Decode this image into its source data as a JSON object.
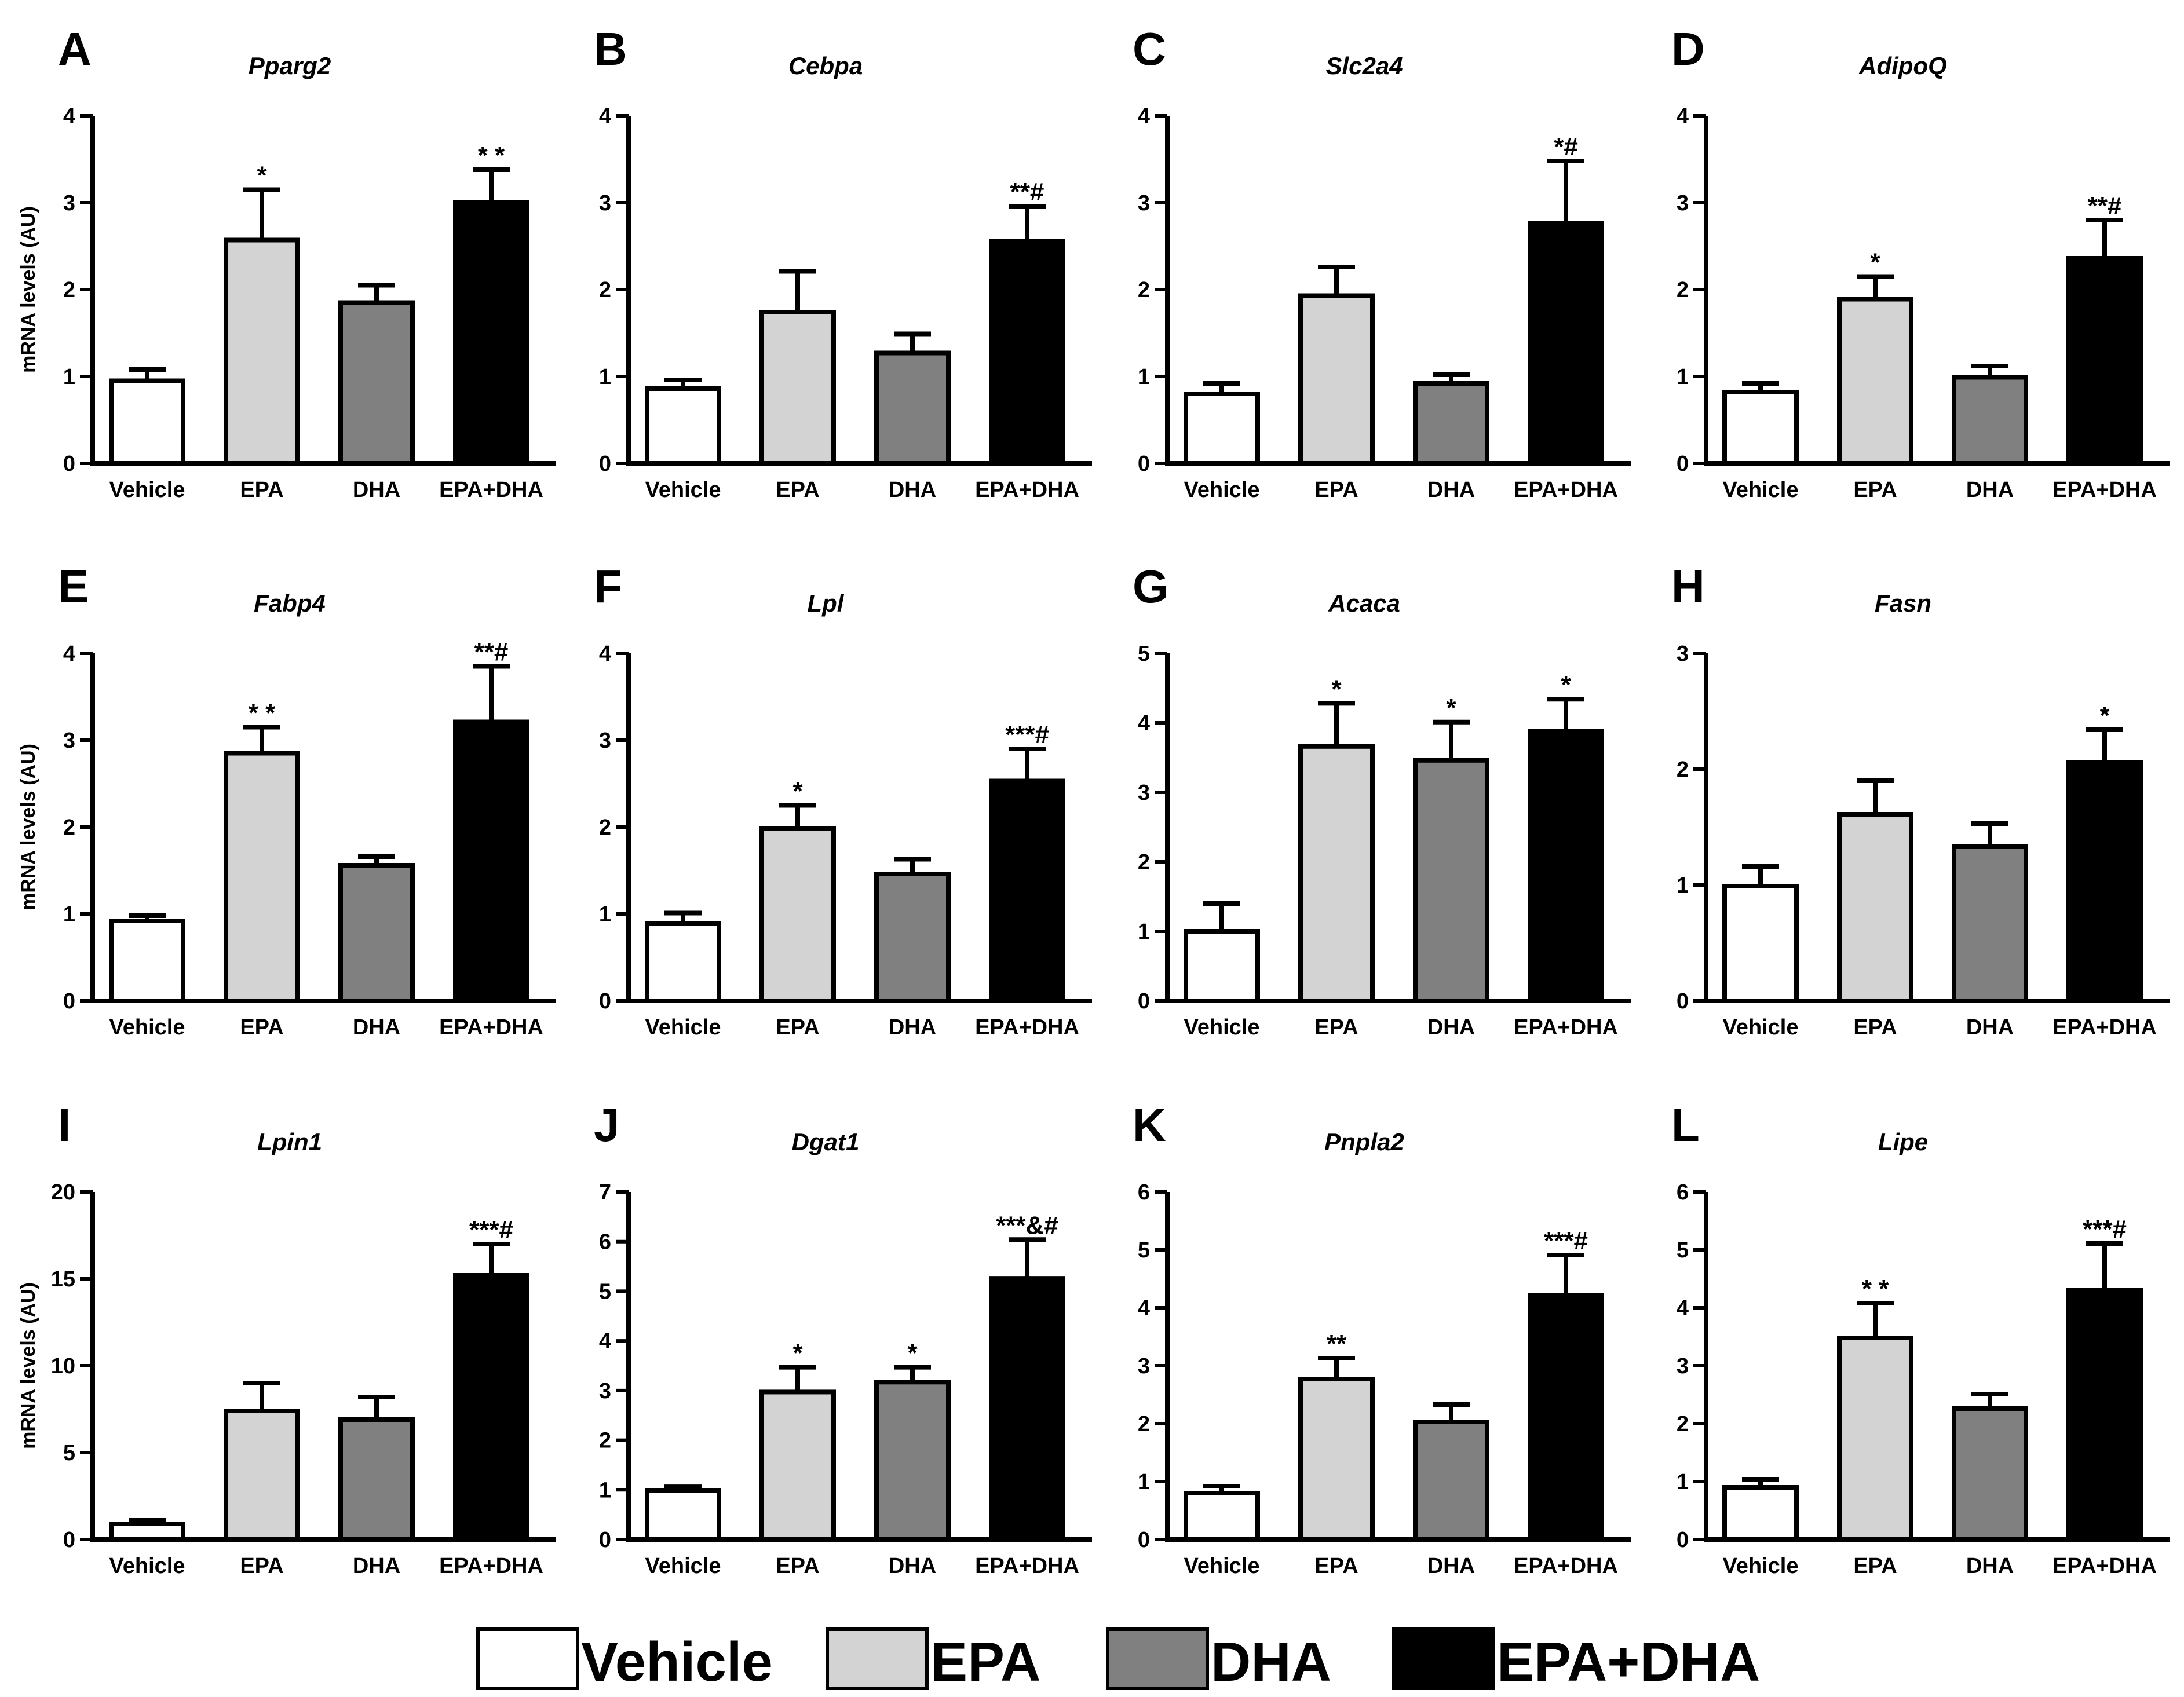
{
  "colors": {
    "Vehicle": "#ffffff",
    "EPA": "#d3d3d3",
    "DHA": "#808080",
    "EPA+DHA": "#000000",
    "stroke": "#000000"
  },
  "legend": [
    "Vehicle",
    "EPA",
    "DHA",
    "EPA+DHA"
  ],
  "chart_data": [
    {
      "panel": "A",
      "type": "bar",
      "title": "Pparg2",
      "ylabel": "mRNA levels (AU)",
      "categories": [
        "Vehicle",
        "EPA",
        "DHA",
        "EPA+DHA"
      ],
      "values": [
        0.95,
        2.57,
        1.85,
        3.0
      ],
      "errors": [
        0.13,
        0.58,
        0.2,
        0.38
      ],
      "annotations": [
        "",
        "*",
        "",
        "* *"
      ],
      "ylim": [
        0,
        4
      ],
      "yticks": [
        "0",
        "1",
        "2",
        "3",
        "4"
      ]
    },
    {
      "panel": "B",
      "type": "bar",
      "title": "Cebpa",
      "ylabel": "",
      "categories": [
        "Vehicle",
        "EPA",
        "DHA",
        "EPA+DHA"
      ],
      "values": [
        0.86,
        1.74,
        1.27,
        2.56
      ],
      "errors": [
        0.1,
        0.47,
        0.22,
        0.4
      ],
      "annotations": [
        "",
        "",
        "",
        "**#"
      ],
      "ylim": [
        0,
        4
      ],
      "yticks": [
        "0",
        "1",
        "2",
        "3",
        "4"
      ]
    },
    {
      "panel": "C",
      "type": "bar",
      "title": "Slc2a4",
      "ylabel": "",
      "categories": [
        "Vehicle",
        "EPA",
        "DHA",
        "EPA+DHA"
      ],
      "values": [
        0.8,
        1.93,
        0.92,
        2.76
      ],
      "errors": [
        0.12,
        0.33,
        0.1,
        0.72
      ],
      "annotations": [
        "",
        "",
        "",
        "*#"
      ],
      "ylim": [
        0,
        4
      ],
      "yticks": [
        "0",
        "1",
        "2",
        "3",
        "4"
      ]
    },
    {
      "panel": "D",
      "type": "bar",
      "title": "AdipoQ",
      "ylabel": "",
      "categories": [
        "Vehicle",
        "EPA",
        "DHA",
        "EPA+DHA"
      ],
      "values": [
        0.82,
        1.89,
        0.99,
        2.36
      ],
      "errors": [
        0.1,
        0.26,
        0.13,
        0.44
      ],
      "annotations": [
        "",
        "*",
        "",
        "**#"
      ],
      "ylim": [
        0,
        4
      ],
      "yticks": [
        "0",
        "1",
        "2",
        "3",
        "4"
      ]
    },
    {
      "panel": "E",
      "type": "bar",
      "title": "Fabp4",
      "ylabel": "mRNA levels (AU)",
      "categories": [
        "Vehicle",
        "EPA",
        "DHA",
        "EPA+DHA"
      ],
      "values": [
        0.92,
        2.85,
        1.56,
        3.21
      ],
      "errors": [
        0.06,
        0.3,
        0.1,
        0.64
      ],
      "annotations": [
        "",
        "* *",
        "",
        "**#"
      ],
      "ylim": [
        0,
        4
      ],
      "yticks": [
        "0",
        "1",
        "2",
        "3",
        "4"
      ]
    },
    {
      "panel": "F",
      "type": "bar",
      "title": "Lpl",
      "ylabel": "",
      "categories": [
        "Vehicle",
        "EPA",
        "DHA",
        "EPA+DHA"
      ],
      "values": [
        0.89,
        1.98,
        1.46,
        2.53
      ],
      "errors": [
        0.12,
        0.27,
        0.17,
        0.37
      ],
      "annotations": [
        "",
        "*",
        "",
        "***#"
      ],
      "ylim": [
        0,
        4
      ],
      "yticks": [
        "0",
        "1",
        "2",
        "3",
        "4"
      ]
    },
    {
      "panel": "G",
      "type": "bar",
      "title": "Acaca",
      "ylabel": "",
      "categories": [
        "Vehicle",
        "EPA",
        "DHA",
        "EPA+DHA"
      ],
      "values": [
        1.0,
        3.66,
        3.46,
        3.88
      ],
      "errors": [
        0.4,
        0.62,
        0.55,
        0.46
      ],
      "annotations": [
        "",
        "*",
        "*",
        "*"
      ],
      "ylim": [
        0,
        5
      ],
      "yticks": [
        "0",
        "1",
        "2",
        "3",
        "4",
        "5"
      ]
    },
    {
      "panel": "H",
      "type": "bar",
      "title": "Fasn",
      "ylabel": "",
      "categories": [
        "Vehicle",
        "EPA",
        "DHA",
        "EPA+DHA"
      ],
      "values": [
        0.99,
        1.61,
        1.33,
        2.06
      ],
      "errors": [
        0.17,
        0.29,
        0.2,
        0.28
      ],
      "annotations": [
        "",
        "",
        "",
        "*"
      ],
      "ylim": [
        0,
        3
      ],
      "yticks": [
        "0",
        "1",
        "2",
        "3"
      ]
    },
    {
      "panel": "I",
      "type": "bar",
      "title": "Lpin1",
      "ylabel": "mRNA levels (AU)",
      "categories": [
        "Vehicle",
        "EPA",
        "DHA",
        "EPA+DHA"
      ],
      "values": [
        0.9,
        7.4,
        6.9,
        15.2
      ],
      "errors": [
        0.2,
        1.6,
        1.3,
        1.8
      ],
      "annotations": [
        "",
        "",
        "",
        "***#"
      ],
      "ylim": [
        0,
        20
      ],
      "yticks": [
        "0",
        "5",
        "10",
        "15",
        "20"
      ]
    },
    {
      "panel": "J",
      "type": "bar",
      "title": "Dgat1",
      "ylabel": "",
      "categories": [
        "Vehicle",
        "EPA",
        "DHA",
        "EPA+DHA"
      ],
      "values": [
        0.98,
        2.97,
        3.17,
        5.26
      ],
      "errors": [
        0.08,
        0.5,
        0.3,
        0.78
      ],
      "annotations": [
        "",
        "*",
        "*",
        "***&#"
      ],
      "ylim": [
        0,
        7
      ],
      "yticks": [
        "0",
        "1",
        "2",
        "3",
        "4",
        "5",
        "6",
        "7"
      ]
    },
    {
      "panel": "K",
      "type": "bar",
      "title": "Pnpla2",
      "ylabel": "",
      "categories": [
        "Vehicle",
        "EPA",
        "DHA",
        "EPA+DHA"
      ],
      "values": [
        0.8,
        2.77,
        2.03,
        4.21
      ],
      "errors": [
        0.12,
        0.36,
        0.3,
        0.7
      ],
      "annotations": [
        "",
        "**",
        "",
        "***#"
      ],
      "ylim": [
        0,
        6
      ],
      "yticks": [
        "0",
        "1",
        "2",
        "3",
        "4",
        "5",
        "6"
      ]
    },
    {
      "panel": "L",
      "type": "bar",
      "title": "Lipe",
      "ylabel": "",
      "categories": [
        "Vehicle",
        "EPA",
        "DHA",
        "EPA+DHA"
      ],
      "values": [
        0.9,
        3.48,
        2.26,
        4.31
      ],
      "errors": [
        0.13,
        0.6,
        0.25,
        0.8
      ],
      "annotations": [
        "",
        "* *",
        "",
        "***#"
      ],
      "ylim": [
        0,
        6
      ],
      "yticks": [
        "0",
        "1",
        "2",
        "3",
        "4",
        "5",
        "6"
      ]
    }
  ]
}
